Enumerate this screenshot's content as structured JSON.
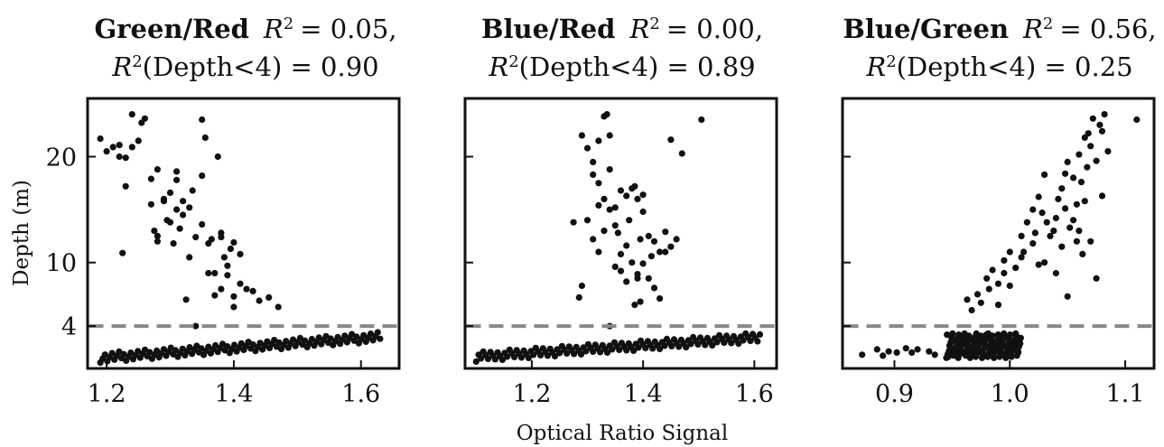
{
  "figure": {
    "xlabel": "Optical Ratio Signal",
    "ylabel": "Depth (m)"
  },
  "chart_data": [
    {
      "type": "scatter",
      "title_bold": "Green/Red",
      "title_r2": "= 0.05,",
      "title_r2_sub": "(Depth<4) = 0.90",
      "xlim": [
        1.17,
        1.66
      ],
      "ylim": [
        0,
        25.5
      ],
      "xticks": [
        "1.2",
        "1.4",
        "1.6"
      ],
      "yticks": [
        "4",
        "10",
        "20"
      ],
      "threshold_depth": 4,
      "grid": false,
      "points": [
        [
          1.19,
          21.7
        ],
        [
          1.2,
          20.5
        ],
        [
          1.21,
          20.9
        ],
        [
          1.22,
          20.0
        ],
        [
          1.23,
          19.9
        ],
        [
          1.23,
          17.2
        ],
        [
          1.22,
          21.1
        ],
        [
          1.24,
          24.0
        ],
        [
          1.25,
          21.5
        ],
        [
          1.26,
          23.6
        ],
        [
          1.255,
          23.2
        ],
        [
          1.24,
          20.9
        ],
        [
          1.225,
          10.9
        ],
        [
          1.27,
          15.5
        ],
        [
          1.275,
          13.0
        ],
        [
          1.28,
          18.8
        ],
        [
          1.29,
          15.8
        ],
        [
          1.3,
          16.6
        ],
        [
          1.31,
          17.8
        ],
        [
          1.32,
          15.8
        ],
        [
          1.33,
          15.2
        ],
        [
          1.34,
          12.4
        ],
        [
          1.35,
          18.2
        ],
        [
          1.36,
          11.8
        ],
        [
          1.37,
          9.0
        ],
        [
          1.38,
          12.8
        ],
        [
          1.385,
          10.5
        ],
        [
          1.39,
          9.7
        ],
        [
          1.4,
          11.9
        ],
        [
          1.41,
          10.8
        ],
        [
          1.42,
          7.5
        ],
        [
          1.44,
          6.4
        ],
        [
          1.47,
          5.8
        ],
        [
          1.35,
          23.5
        ],
        [
          1.355,
          21.8
        ],
        [
          1.375,
          20.0
        ],
        [
          1.39,
          8.8
        ],
        [
          1.37,
          6.9
        ],
        [
          1.34,
          4.0
        ],
        [
          1.28,
          12.5
        ],
        [
          1.3,
          13.8
        ],
        [
          1.32,
          14.5
        ],
        [
          1.305,
          11.8
        ],
        [
          1.33,
          10.5
        ],
        [
          1.36,
          9.0
        ],
        [
          1.38,
          7.5
        ],
        [
          1.4,
          6.8
        ],
        [
          1.41,
          8.0
        ],
        [
          1.29,
          16.0
        ],
        [
          1.31,
          15.0
        ],
        [
          1.335,
          16.8
        ],
        [
          1.35,
          13.6
        ],
        [
          1.365,
          12.2
        ],
        [
          1.395,
          11.3
        ],
        [
          1.27,
          17.9
        ],
        [
          1.295,
          14.0
        ],
        [
          1.325,
          6.5
        ],
        [
          1.4,
          5.8
        ],
        [
          1.455,
          6.7
        ],
        [
          1.43,
          7.3
        ],
        [
          1.28,
          12.0
        ],
        [
          1.31,
          18.6
        ],
        [
          1.315,
          13.2
        ],
        [
          1.38,
          12.4
        ]
      ]
    },
    {
      "type": "scatter",
      "title_bold": "Blue/Red",
      "title_r2": "= 0.00,",
      "title_r2_sub": "(Depth<4) = 0.89",
      "xlim": [
        1.08,
        1.64
      ],
      "ylim": [
        0,
        25.5
      ],
      "xticks": [
        "1.2",
        "1.4",
        "1.6"
      ],
      "yticks": [
        "4",
        "10",
        "20"
      ],
      "threshold_depth": 4,
      "grid": false,
      "points": [
        [
          1.29,
          22.0
        ],
        [
          1.3,
          20.8
        ],
        [
          1.31,
          19.5
        ],
        [
          1.32,
          21.5
        ],
        [
          1.33,
          23.8
        ],
        [
          1.335,
          24.0
        ],
        [
          1.34,
          22.0
        ],
        [
          1.31,
          18.3
        ],
        [
          1.32,
          17.5
        ],
        [
          1.33,
          16.0
        ],
        [
          1.34,
          18.8
        ],
        [
          1.35,
          15.2
        ],
        [
          1.36,
          16.8
        ],
        [
          1.37,
          16.3
        ],
        [
          1.38,
          17.0
        ],
        [
          1.39,
          16.0
        ],
        [
          1.4,
          14.8
        ],
        [
          1.41,
          12.5
        ],
        [
          1.42,
          12.0
        ],
        [
          1.43,
          11.0
        ],
        [
          1.44,
          12.9
        ],
        [
          1.45,
          11.5
        ],
        [
          1.46,
          12.2
        ],
        [
          1.3,
          14.0
        ],
        [
          1.31,
          12.2
        ],
        [
          1.32,
          11.0
        ],
        [
          1.35,
          13.5
        ],
        [
          1.37,
          11.6
        ],
        [
          1.38,
          10.0
        ],
        [
          1.39,
          8.9
        ],
        [
          1.4,
          9.9
        ],
        [
          1.41,
          8.5
        ],
        [
          1.42,
          7.6
        ],
        [
          1.43,
          6.6
        ],
        [
          1.29,
          7.8
        ],
        [
          1.285,
          6.7
        ],
        [
          1.34,
          4.0
        ],
        [
          1.36,
          9.2
        ],
        [
          1.37,
          8.2
        ],
        [
          1.385,
          6.0
        ],
        [
          1.395,
          6.3
        ],
        [
          1.36,
          10.8
        ],
        [
          1.275,
          13.8
        ],
        [
          1.45,
          21.6
        ],
        [
          1.47,
          20.3
        ],
        [
          1.505,
          23.5
        ],
        [
          1.34,
          15.0
        ],
        [
          1.355,
          12.8
        ],
        [
          1.375,
          14.0
        ],
        [
          1.395,
          12.2
        ],
        [
          1.415,
          10.6
        ],
        [
          1.44,
          11.0
        ],
        [
          1.35,
          9.6
        ],
        [
          1.33,
          13.0
        ],
        [
          1.32,
          15.4
        ],
        [
          1.385,
          17.2
        ],
        [
          1.4,
          16.4
        ],
        [
          1.39,
          8.5
        ]
      ]
    },
    {
      "type": "scatter",
      "title_bold": "Blue/Green",
      "title_r2": "= 0.56,",
      "title_r2_sub": "(Depth<4) = 0.25",
      "xlim": [
        0.855,
        1.125
      ],
      "ylim": [
        0,
        25.5
      ],
      "xticks": [
        "0.9",
        "1.0",
        "1.1"
      ],
      "yticks": [
        "4",
        "10",
        "20"
      ],
      "threshold_depth": 4,
      "grid": false,
      "points": [
        [
          0.963,
          6.5
        ],
        [
          0.967,
          5.5
        ],
        [
          0.972,
          7.0
        ],
        [
          0.975,
          6.2
        ],
        [
          0.98,
          8.5
        ],
        [
          0.982,
          7.5
        ],
        [
          0.985,
          9.3
        ],
        [
          0.99,
          8.0
        ],
        [
          0.995,
          10.2
        ],
        [
          1.0,
          11.0
        ],
        [
          1.005,
          9.5
        ],
        [
          1.01,
          12.5
        ],
        [
          1.012,
          11.0
        ],
        [
          1.015,
          13.8
        ],
        [
          1.02,
          15.0
        ],
        [
          1.022,
          12.8
        ],
        [
          1.025,
          16.2
        ],
        [
          1.028,
          14.7
        ],
        [
          1.03,
          18.3
        ],
        [
          1.032,
          13.8
        ],
        [
          1.035,
          12.5
        ],
        [
          1.04,
          14.2
        ],
        [
          1.042,
          16.0
        ],
        [
          1.045,
          17.0
        ],
        [
          1.048,
          15.1
        ],
        [
          1.05,
          19.5
        ],
        [
          1.052,
          13.3
        ],
        [
          1.055,
          18.0
        ],
        [
          1.058,
          12.0
        ],
        [
          1.06,
          20.2
        ],
        [
          1.062,
          17.6
        ],
        [
          1.065,
          21.8
        ],
        [
          1.068,
          22.2
        ],
        [
          1.07,
          21.0
        ],
        [
          1.072,
          23.6
        ],
        [
          1.075,
          19.6
        ],
        [
          1.078,
          23.0
        ],
        [
          1.08,
          22.4
        ],
        [
          1.082,
          24.0
        ],
        [
          1.085,
          20.5
        ],
        [
          1.11,
          23.5
        ],
        [
          1.06,
          13.0
        ],
        [
          1.063,
          10.8
        ],
        [
          1.07,
          12.0
        ],
        [
          1.075,
          8.5
        ],
        [
          1.08,
          16.3
        ],
        [
          1.05,
          6.8
        ],
        [
          1.04,
          9.0
        ],
        [
          1.03,
          10.0
        ],
        [
          1.02,
          11.8
        ],
        [
          1.01,
          10.5
        ],
        [
          1.0,
          7.8
        ],
        [
          0.995,
          9.0
        ],
        [
          1.045,
          11.5
        ],
        [
          1.055,
          14.0
        ],
        [
          1.065,
          15.8
        ],
        [
          1.038,
          13.0
        ],
        [
          1.025,
          9.8
        ],
        [
          0.99,
          6.0
        ],
        [
          1.067,
          19.0
        ],
        [
          1.058,
          15.5
        ],
        [
          1.048,
          18.4
        ]
      ]
    }
  ]
}
